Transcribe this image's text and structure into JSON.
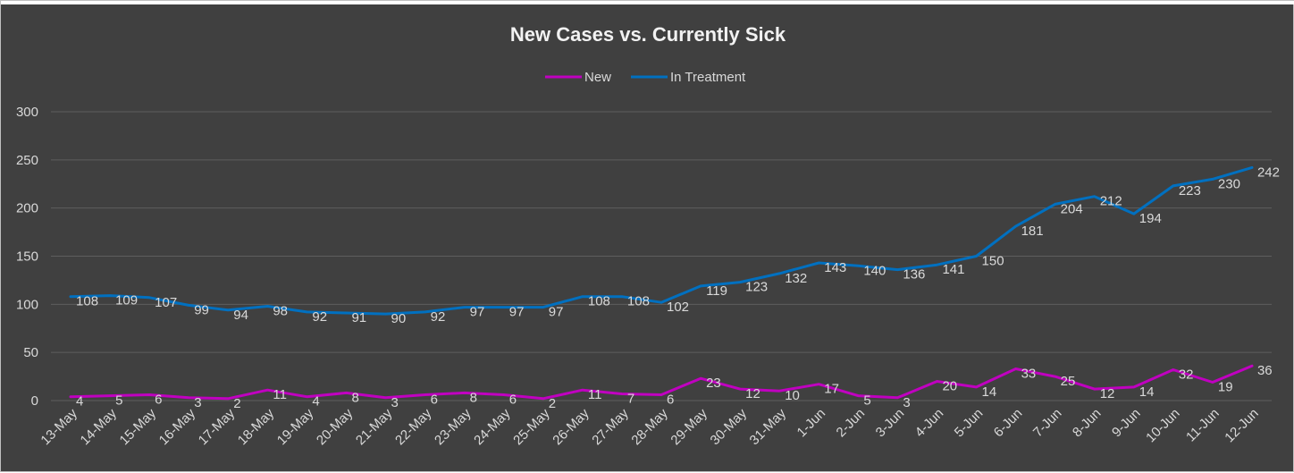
{
  "chart_data": {
    "type": "line",
    "title": "New Cases vs. Currently Sick",
    "xlabel": "",
    "ylabel": "",
    "ylim": [
      0,
      300
    ],
    "yticks": [
      0,
      50,
      100,
      150,
      200,
      250,
      300
    ],
    "grid": true,
    "legend_position": "top",
    "categories": [
      "13-May",
      "14-May",
      "15-May",
      "16-May",
      "17-May",
      "18-May",
      "19-May",
      "20-May",
      "21-May",
      "22-May",
      "23-May",
      "24-May",
      "25-May",
      "26-May",
      "27-May",
      "28-May",
      "29-May",
      "30-May",
      "31-May",
      "1-Jun",
      "2-Jun",
      "3-Jun",
      "4-Jun",
      "5-Jun",
      "6-Jun",
      "7-Jun",
      "8-Jun",
      "9-Jun",
      "10-Jun",
      "11-Jun",
      "12-Jun"
    ],
    "series": [
      {
        "name": "New",
        "color": "#c000c0",
        "values": [
          4,
          5,
          6,
          3,
          2,
          11,
          4,
          8,
          3,
          6,
          8,
          6,
          2,
          11,
          7,
          6,
          23,
          12,
          10,
          17,
          5,
          3,
          20,
          14,
          33,
          25,
          12,
          14,
          32,
          19,
          36
        ]
      },
      {
        "name": "In Treatment",
        "color": "#0070c0",
        "values": [
          108,
          109,
          107,
          99,
          94,
          98,
          92,
          91,
          90,
          92,
          97,
          97,
          97,
          108,
          108,
          102,
          119,
          123,
          132,
          143,
          140,
          136,
          141,
          150,
          181,
          204,
          212,
          194,
          223,
          230,
          242
        ]
      }
    ]
  }
}
